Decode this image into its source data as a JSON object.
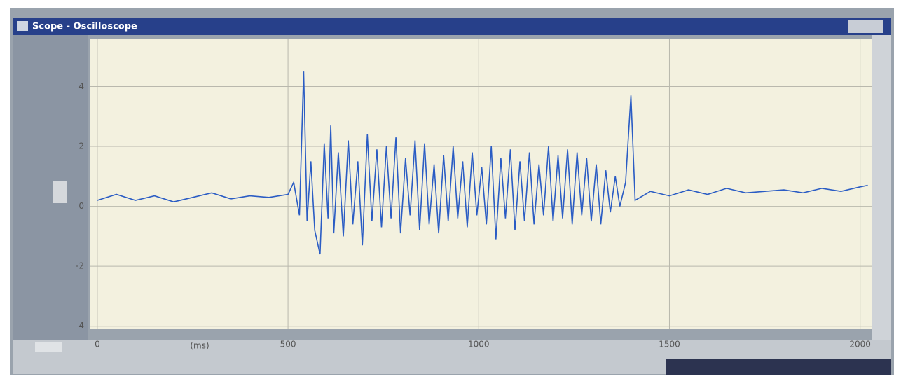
{
  "window": {
    "title": "Scope - Oscilloscope"
  },
  "chart_data": {
    "type": "line",
    "x_label": "(ms)",
    "color": "#2a5cc4",
    "grid": true,
    "xlim": [
      -20,
      2030
    ],
    "ylim": [
      -4.1,
      5.6
    ],
    "xticks": [
      0,
      500,
      1000,
      1500,
      2000
    ],
    "yticks": [
      -4,
      -2,
      0,
      2,
      4
    ],
    "x": [
      0,
      50,
      100,
      150,
      200,
      250,
      300,
      350,
      400,
      450,
      500,
      515,
      530,
      541,
      550,
      560,
      570,
      584,
      595,
      605,
      612,
      620,
      632,
      645,
      658,
      670,
      683,
      695,
      708,
      720,
      733,
      745,
      758,
      770,
      783,
      795,
      808,
      820,
      833,
      845,
      858,
      870,
      883,
      895,
      908,
      920,
      933,
      945,
      958,
      970,
      983,
      995,
      1008,
      1020,
      1033,
      1045,
      1058,
      1070,
      1083,
      1095,
      1108,
      1120,
      1133,
      1145,
      1158,
      1170,
      1183,
      1195,
      1208,
      1220,
      1233,
      1245,
      1258,
      1270,
      1283,
      1295,
      1308,
      1320,
      1333,
      1345,
      1358,
      1370,
      1385,
      1399,
      1410,
      1450,
      1500,
      1550,
      1600,
      1650,
      1700,
      1750,
      1800,
      1850,
      1900,
      1950,
      2000,
      2020
    ],
    "values": [
      0.2,
      0.4,
      0.2,
      0.35,
      0.15,
      0.3,
      0.45,
      0.25,
      0.35,
      0.3,
      0.4,
      0.8,
      -0.3,
      4.5,
      -0.5,
      1.5,
      -0.8,
      -1.6,
      2.1,
      -0.4,
      2.7,
      -0.9,
      1.8,
      -1.0,
      2.2,
      -0.6,
      1.5,
      -1.3,
      2.4,
      -0.5,
      1.9,
      -0.7,
      2.0,
      -0.4,
      2.3,
      -0.9,
      1.6,
      -0.3,
      2.2,
      -0.8,
      2.1,
      -0.6,
      1.4,
      -0.9,
      1.7,
      -0.5,
      2.0,
      -0.4,
      1.5,
      -0.7,
      1.8,
      -0.3,
      1.3,
      -0.6,
      2.0,
      -1.1,
      1.6,
      -0.4,
      1.9,
      -0.8,
      1.5,
      -0.5,
      1.8,
      -0.6,
      1.4,
      -0.3,
      2.0,
      -0.5,
      1.7,
      -0.4,
      1.9,
      -0.6,
      1.8,
      -0.3,
      1.6,
      -0.5,
      1.4,
      -0.6,
      1.2,
      -0.2,
      1.0,
      0.0,
      0.8,
      3.7,
      0.2,
      0.5,
      0.35,
      0.55,
      0.4,
      0.6,
      0.45,
      0.5,
      0.55,
      0.45,
      0.6,
      0.5,
      0.65,
      0.7
    ]
  }
}
